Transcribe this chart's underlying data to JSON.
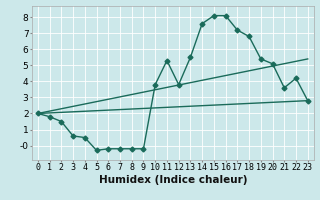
{
  "xlabel": "Humidex (Indice chaleur)",
  "bg_color": "#cce8ea",
  "grid_color": "#ffffff",
  "line_color": "#1a6b5a",
  "xlim": [
    -0.5,
    23.5
  ],
  "ylim": [
    -0.9,
    8.7
  ],
  "xticks": [
    0,
    1,
    2,
    3,
    4,
    5,
    6,
    7,
    8,
    9,
    10,
    11,
    12,
    13,
    14,
    15,
    16,
    17,
    18,
    19,
    20,
    21,
    22,
    23
  ],
  "yticks": [
    0,
    1,
    2,
    3,
    4,
    5,
    6,
    7,
    8
  ],
  "ytick_labels": [
    "-0",
    "1",
    "2",
    "3",
    "4",
    "5",
    "6",
    "7",
    "8"
  ],
  "series1_x": [
    0,
    1,
    2,
    3,
    4,
    5,
    6,
    7,
    8,
    9,
    10,
    11,
    12,
    13,
    14,
    15,
    16,
    17,
    18,
    19,
    20,
    21,
    22,
    23
  ],
  "series1_y": [
    2.0,
    1.8,
    1.5,
    0.6,
    0.5,
    -0.3,
    -0.2,
    -0.2,
    -0.2,
    -0.2,
    3.8,
    5.3,
    3.8,
    5.5,
    7.6,
    8.1,
    8.1,
    7.2,
    6.8,
    5.4,
    5.1,
    3.6,
    4.2,
    2.8
  ],
  "series2_x": [
    0,
    23
  ],
  "series2_y": [
    2.0,
    2.8
  ],
  "series3_x": [
    0,
    23
  ],
  "series3_y": [
    2.0,
    5.4
  ],
  "marker": "D",
  "marker_size": 2.5,
  "line_width": 1.0,
  "font_size": 6.5,
  "xlabel_fontsize": 7.5
}
